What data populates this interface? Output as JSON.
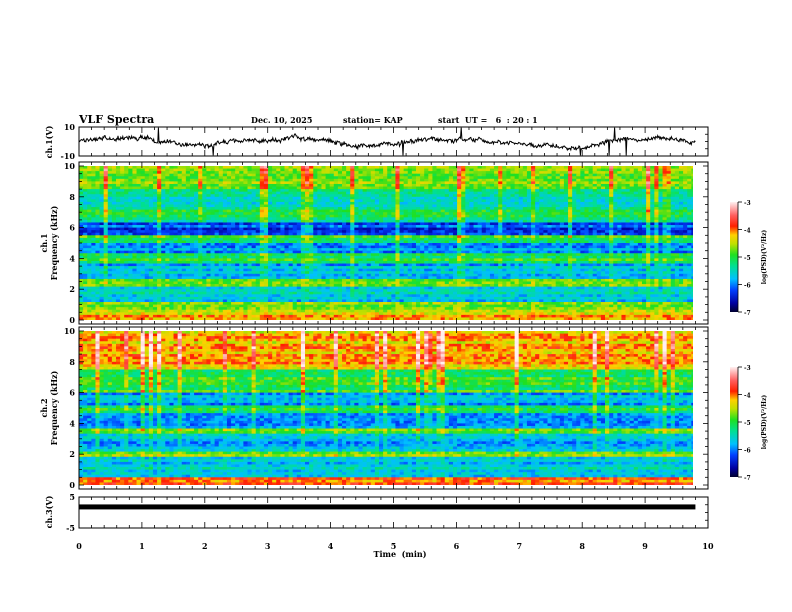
{
  "header": {
    "title": "VLF Spectra",
    "date": "Dec. 10, 2025",
    "station": "station= KAP",
    "start_time": "start  UT =   6  : 20 : 1"
  },
  "colors": {
    "trace": "#000000",
    "axis": "#000000",
    "background": "#ffffff"
  },
  "chart_data": [
    {
      "type": "line",
      "name": "ch1-waveform",
      "ylabel": "ch.1(V)",
      "ylim": [
        -10,
        10
      ],
      "yticks": [
        "10",
        "-10"
      ],
      "xlim": [
        0,
        10
      ],
      "data_end_min": 9.8,
      "description_values": "noisy waveform centered near 0 V, amplitude roughly -5 to 5 V with occasional spikes to ±10 V"
    },
    {
      "type": "heatmap",
      "name": "ch1-spectrogram",
      "ylabel_line1": "ch.1",
      "ylabel_line2": "Frequency  (kHz)",
      "ylim": [
        0,
        10
      ],
      "yticks": [
        "0",
        "2",
        "4",
        "6",
        "8",
        "10"
      ],
      "xlim": [
        0,
        10
      ],
      "data_end_min": 9.8,
      "colorbar": {
        "label": "log(PSD)(V²/Hz)",
        "range": [
          -7,
          -3
        ],
        "ticks": [
          "-3",
          "-4",
          "-5",
          "-6",
          "-7"
        ]
      },
      "bands": [
        {
          "f0": 0.0,
          "f1": 0.4,
          "level": -4.0
        },
        {
          "f0": 0.4,
          "f1": 1.2,
          "level": -4.6
        },
        {
          "f0": 1.2,
          "f1": 2.2,
          "level": -5.6
        },
        {
          "f0": 2.2,
          "f1": 2.6,
          "level": -4.7
        },
        {
          "f0": 2.6,
          "f1": 3.7,
          "level": -5.7
        },
        {
          "f0": 3.7,
          "f1": 4.3,
          "level": -5.0
        },
        {
          "f0": 4.3,
          "f1": 5.0,
          "level": -6.0
        },
        {
          "f0": 5.0,
          "f1": 5.5,
          "level": -5.0
        },
        {
          "f0": 5.5,
          "f1": 6.4,
          "level": -6.2
        },
        {
          "f0": 6.4,
          "f1": 7.2,
          "level": -5.2
        },
        {
          "f0": 7.2,
          "f1": 8.5,
          "level": -5.4
        },
        {
          "f0": 8.5,
          "f1": 10.0,
          "level": -4.8
        }
      ]
    },
    {
      "type": "heatmap",
      "name": "ch2-spectrogram",
      "ylabel_line1": "ch.2",
      "ylabel_line2": "Frequency  (kHz)",
      "ylim": [
        0,
        10
      ],
      "yticks": [
        "0",
        "2",
        "4",
        "6",
        "8",
        "10"
      ],
      "xlim": [
        0,
        10
      ],
      "data_end_min": 9.8,
      "colorbar": {
        "label": "log(PSD)(V²/Hz)",
        "range": [
          -7,
          -3
        ],
        "ticks": [
          "-3",
          "-4",
          "-5",
          "-6",
          "-7"
        ]
      },
      "bands": [
        {
          "f0": 0.0,
          "f1": 0.5,
          "level": -4.0
        },
        {
          "f0": 0.5,
          "f1": 1.8,
          "level": -5.6
        },
        {
          "f0": 1.8,
          "f1": 2.2,
          "level": -4.8
        },
        {
          "f0": 2.2,
          "f1": 3.3,
          "level": -5.8
        },
        {
          "f0": 3.3,
          "f1": 3.7,
          "level": -4.8
        },
        {
          "f0": 3.7,
          "f1": 4.7,
          "level": -6.0
        },
        {
          "f0": 4.7,
          "f1": 5.2,
          "level": -5.2
        },
        {
          "f0": 5.2,
          "f1": 6.0,
          "level": -5.9
        },
        {
          "f0": 6.0,
          "f1": 7.5,
          "level": -5.0
        },
        {
          "f0": 7.5,
          "f1": 10.0,
          "level": -4.2
        }
      ]
    },
    {
      "type": "line",
      "name": "ch3-waveform",
      "ylabel": "ch.3(V)",
      "ylim": [
        -5,
        5
      ],
      "yticks": [
        "5",
        "-5"
      ],
      "xlim": [
        0,
        10
      ],
      "xticks": [
        "0",
        "1",
        "2",
        "3",
        "4",
        "5",
        "6",
        "7",
        "8",
        "9",
        "10"
      ],
      "xlabel": "Time  (min)",
      "level_v": 1.8,
      "data_end_min": 9.8
    }
  ]
}
